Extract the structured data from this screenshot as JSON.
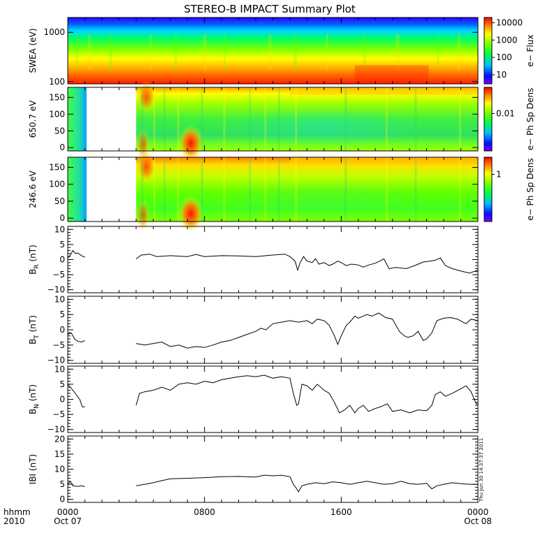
{
  "title": "STEREO-B IMPACT Summary Plot",
  "timestamp": "Thu Jun 30 14:37:37 2011",
  "x_axis": {
    "row1": [
      "hhmm",
      "0000",
      "0800",
      "1600",
      "0000"
    ],
    "row2": [
      "2010",
      "Oct 07",
      "",
      "",
      "Oct 08"
    ],
    "range_hours": [
      0,
      24
    ],
    "tick_hours": [
      0,
      8,
      16,
      24
    ]
  },
  "chart_data": [
    {
      "type": "heatmap",
      "name": "swea",
      "ylabel": "SWEA (eV)",
      "yscale": "log",
      "ylim": [
        90,
        2000
      ],
      "yticks": [
        {
          "v": 100,
          "label": "100"
        },
        {
          "v": 1000,
          "label": "1000"
        }
      ],
      "colorbar": {
        "label": "e− Flux",
        "scale": "log",
        "range": [
          3,
          20000
        ],
        "ticks": [
          {
            "v": 10,
            "label": "10"
          },
          {
            "v": 100,
            "label": "100"
          },
          {
            "v": 1000,
            "label": "1000"
          },
          {
            "v": 10000,
            "label": "10000"
          }
        ]
      },
      "data_gaps_hours": []
    },
    {
      "type": "heatmap",
      "name": "pad650",
      "ylabel": "650.7 eV",
      "ylim": [
        -10,
        180
      ],
      "yticks": [
        {
          "v": 0,
          "label": "0"
        },
        {
          "v": 50,
          "label": "50"
        },
        {
          "v": 100,
          "label": "100"
        },
        {
          "v": 150,
          "label": "150"
        }
      ],
      "colorbar": {
        "label": "e− Ph Sp Dens",
        "scale": "log",
        "range": [
          0.001,
          0.05
        ],
        "ticks": [
          {
            "v": 0.01,
            "label": "0.01"
          }
        ]
      },
      "data_gaps_hours": [
        [
          1.1,
          4.0
        ]
      ]
    },
    {
      "type": "heatmap",
      "name": "pad246",
      "ylabel": "246.6 eV",
      "ylim": [
        -10,
        180
      ],
      "yticks": [
        {
          "v": 0,
          "label": "0"
        },
        {
          "v": 50,
          "label": "50"
        },
        {
          "v": 100,
          "label": "100"
        },
        {
          "v": 150,
          "label": "150"
        }
      ],
      "colorbar": {
        "label": "e− Ph Sp Dens",
        "scale": "log",
        "range": [
          0.05,
          3
        ],
        "ticks": [
          {
            "v": 1,
            "label": "1"
          }
        ]
      },
      "data_gaps_hours": [
        [
          1.1,
          4.0
        ]
      ]
    },
    {
      "type": "line",
      "name": "br",
      "ylabel": "B",
      "ylabel_sub": "R",
      "ylabel_unit": " (nT)",
      "ylim": [
        -11,
        11
      ],
      "yticks": [
        {
          "v": -10,
          "label": "−10"
        },
        {
          "v": -5,
          "label": "−5"
        },
        {
          "v": 0,
          "label": "0"
        },
        {
          "v": 5,
          "label": "5"
        },
        {
          "v": 10,
          "label": "10"
        }
      ],
      "series": [
        [
          [
            0.0,
            0.5
          ],
          [
            0.15,
            1.5
          ],
          [
            0.3,
            3.0
          ],
          [
            0.45,
            2.0
          ],
          [
            0.6,
            2.2
          ],
          [
            0.8,
            1.3
          ],
          [
            1.0,
            0.8
          ]
        ],
        [
          [
            4.0,
            0.2
          ],
          [
            4.3,
            1.5
          ],
          [
            4.8,
            1.8
          ],
          [
            5.2,
            1.0
          ],
          [
            6.0,
            1.3
          ],
          [
            7.0,
            1.0
          ],
          [
            7.5,
            1.7
          ],
          [
            8.0,
            1.0
          ],
          [
            9.0,
            1.3
          ],
          [
            10.0,
            1.2
          ],
          [
            11.0,
            1.0
          ],
          [
            12.0,
            1.5
          ],
          [
            12.7,
            1.8
          ],
          [
            13.0,
            1.0
          ],
          [
            13.3,
            -0.5
          ],
          [
            13.45,
            -3.5
          ],
          [
            13.6,
            -1.0
          ],
          [
            13.8,
            1.0
          ],
          [
            14.0,
            -0.5
          ],
          [
            14.3,
            -1.0
          ],
          [
            14.5,
            0.3
          ],
          [
            14.7,
            -1.5
          ],
          [
            15.0,
            -1.0
          ],
          [
            15.3,
            -2.0
          ],
          [
            15.5,
            -1.5
          ],
          [
            15.8,
            -0.5
          ],
          [
            16.0,
            -1.0
          ],
          [
            16.3,
            -2.0
          ],
          [
            16.6,
            -1.5
          ],
          [
            17.0,
            -1.8
          ],
          [
            17.3,
            -2.5
          ],
          [
            17.6,
            -1.8
          ],
          [
            18.0,
            -1.2
          ],
          [
            18.5,
            0.2
          ],
          [
            18.8,
            -3.0
          ],
          [
            19.2,
            -2.6
          ],
          [
            19.8,
            -3.0
          ],
          [
            20.3,
            -2.0
          ],
          [
            20.8,
            -0.8
          ],
          [
            21.2,
            -0.5
          ],
          [
            21.5,
            -0.2
          ],
          [
            21.8,
            0.5
          ],
          [
            22.1,
            -2.0
          ],
          [
            22.5,
            -3.0
          ],
          [
            23.0,
            -3.8
          ],
          [
            23.5,
            -4.5
          ],
          [
            24.0,
            -3.5
          ]
        ]
      ]
    },
    {
      "type": "line",
      "name": "bt",
      "ylabel": "B",
      "ylabel_sub": "T",
      "ylabel_unit": " (nT)",
      "ylim": [
        -11,
        11
      ],
      "yticks": [
        {
          "v": -10,
          "label": "−10"
        },
        {
          "v": -5,
          "label": "−5"
        },
        {
          "v": 0,
          "label": "0"
        },
        {
          "v": 5,
          "label": "5"
        },
        {
          "v": 10,
          "label": "10"
        }
      ],
      "series": [
        [
          [
            0.0,
            -1.5
          ],
          [
            0.2,
            -1.0
          ],
          [
            0.4,
            -3.0
          ],
          [
            0.6,
            -3.8
          ],
          [
            0.8,
            -4.0
          ],
          [
            1.0,
            -3.5
          ]
        ],
        [
          [
            4.0,
            -4.5
          ],
          [
            4.5,
            -5.0
          ],
          [
            5.0,
            -4.5
          ],
          [
            5.5,
            -4.0
          ],
          [
            6.0,
            -5.5
          ],
          [
            6.5,
            -5.0
          ],
          [
            7.0,
            -6.0
          ],
          [
            7.5,
            -5.5
          ],
          [
            8.0,
            -5.8
          ],
          [
            8.5,
            -5.0
          ],
          [
            9.0,
            -4.0
          ],
          [
            9.5,
            -3.5
          ],
          [
            10.0,
            -2.5
          ],
          [
            10.5,
            -1.5
          ],
          [
            11.0,
            -0.5
          ],
          [
            11.3,
            0.5
          ],
          [
            11.6,
            0.0
          ],
          [
            12.0,
            2.0
          ],
          [
            12.5,
            2.5
          ],
          [
            13.0,
            3.0
          ],
          [
            13.5,
            2.5
          ],
          [
            14.0,
            3.0
          ],
          [
            14.3,
            2.0
          ],
          [
            14.6,
            3.5
          ],
          [
            15.0,
            3.0
          ],
          [
            15.3,
            1.5
          ],
          [
            15.6,
            -2.0
          ],
          [
            15.8,
            -4.8
          ],
          [
            16.0,
            -2.0
          ],
          [
            16.3,
            1.5
          ],
          [
            16.5,
            2.5
          ],
          [
            16.8,
            4.5
          ],
          [
            17.0,
            3.8
          ],
          [
            17.5,
            5.0
          ],
          [
            17.8,
            4.5
          ],
          [
            18.2,
            5.5
          ],
          [
            18.6,
            4.0
          ],
          [
            19.0,
            3.5
          ],
          [
            19.4,
            -0.5
          ],
          [
            19.7,
            -2.0
          ],
          [
            19.9,
            -2.5
          ],
          [
            20.2,
            -2.0
          ],
          [
            20.5,
            -0.5
          ],
          [
            20.8,
            -3.5
          ],
          [
            21.0,
            -3.0
          ],
          [
            21.3,
            -1.0
          ],
          [
            21.6,
            3.0
          ],
          [
            22.0,
            3.8
          ],
          [
            22.4,
            4.0
          ],
          [
            22.8,
            3.5
          ],
          [
            23.3,
            2.0
          ],
          [
            23.6,
            3.5
          ],
          [
            24.0,
            3.0
          ]
        ]
      ]
    },
    {
      "type": "line",
      "name": "bn",
      "ylabel": "B",
      "ylabel_sub": "N",
      "ylabel_unit": " (nT)",
      "ylim": [
        -11,
        11
      ],
      "yticks": [
        {
          "v": -10,
          "label": "−10"
        },
        {
          "v": -5,
          "label": "−5"
        },
        {
          "v": 0,
          "label": "0"
        },
        {
          "v": 5,
          "label": "5"
        },
        {
          "v": 10,
          "label": "10"
        }
      ],
      "series": [
        [
          [
            0.0,
            5.0
          ],
          [
            0.15,
            4.0
          ],
          [
            0.3,
            3.0
          ],
          [
            0.5,
            1.5
          ],
          [
            0.7,
            0.0
          ],
          [
            0.85,
            -2.5
          ],
          [
            1.0,
            -2.5
          ]
        ],
        [
          [
            4.0,
            -2.0
          ],
          [
            4.2,
            2.0
          ],
          [
            4.5,
            2.5
          ],
          [
            5.0,
            3.0
          ],
          [
            5.5,
            4.0
          ],
          [
            6.0,
            3.0
          ],
          [
            6.5,
            5.0
          ],
          [
            7.0,
            5.5
          ],
          [
            7.5,
            5.0
          ],
          [
            8.0,
            6.0
          ],
          [
            8.5,
            5.5
          ],
          [
            9.0,
            6.5
          ],
          [
            9.5,
            7.0
          ],
          [
            10.0,
            7.5
          ],
          [
            10.5,
            7.8
          ],
          [
            11.0,
            7.5
          ],
          [
            11.5,
            8.0
          ],
          [
            12.0,
            7.0
          ],
          [
            12.5,
            7.5
          ],
          [
            13.0,
            7.0
          ],
          [
            13.2,
            2.0
          ],
          [
            13.4,
            -2.0
          ],
          [
            13.5,
            -1.5
          ],
          [
            13.7,
            5.0
          ],
          [
            14.0,
            4.5
          ],
          [
            14.3,
            3.0
          ],
          [
            14.6,
            5.0
          ],
          [
            15.0,
            3.0
          ],
          [
            15.3,
            2.0
          ],
          [
            15.6,
            -1.0
          ],
          [
            15.9,
            -4.5
          ],
          [
            16.2,
            -3.5
          ],
          [
            16.5,
            -2.0
          ],
          [
            16.8,
            -4.5
          ],
          [
            17.0,
            -3.0
          ],
          [
            17.3,
            -2.0
          ],
          [
            17.6,
            -4.0
          ],
          [
            18.0,
            -3.0
          ],
          [
            18.3,
            -2.5
          ],
          [
            18.7,
            -1.5
          ],
          [
            19.0,
            -4.0
          ],
          [
            19.5,
            -3.5
          ],
          [
            20.0,
            -4.5
          ],
          [
            20.5,
            -3.5
          ],
          [
            21.0,
            -3.8
          ],
          [
            21.3,
            -2.0
          ],
          [
            21.5,
            1.5
          ],
          [
            21.8,
            2.5
          ],
          [
            22.1,
            1.0
          ],
          [
            22.5,
            2.0
          ],
          [
            23.0,
            3.5
          ],
          [
            23.3,
            4.5
          ],
          [
            23.6,
            2.5
          ],
          [
            23.9,
            -1.5
          ],
          [
            24.0,
            -1.5
          ]
        ]
      ]
    },
    {
      "type": "line",
      "name": "bmag",
      "ylabel": "IBI (nT)",
      "ylim": [
        -1,
        21
      ],
      "yticks": [
        {
          "v": 0,
          "label": "0"
        },
        {
          "v": 5,
          "label": "5"
        },
        {
          "v": 10,
          "label": "10"
        },
        {
          "v": 15,
          "label": "15"
        },
        {
          "v": 20,
          "label": "20"
        }
      ],
      "series": [
        [
          [
            0.0,
            5.0
          ],
          [
            0.15,
            6.0
          ],
          [
            0.3,
            4.5
          ],
          [
            0.6,
            4.3
          ],
          [
            0.8,
            4.5
          ],
          [
            1.0,
            4.2
          ]
        ],
        [
          [
            4.0,
            4.5
          ],
          [
            4.5,
            5.0
          ],
          [
            5.0,
            5.5
          ],
          [
            5.5,
            6.2
          ],
          [
            6.0,
            6.8
          ],
          [
            7.0,
            7.0
          ],
          [
            8.0,
            7.2
          ],
          [
            9.0,
            7.5
          ],
          [
            10.0,
            7.6
          ],
          [
            11.0,
            7.4
          ],
          [
            11.5,
            8.0
          ],
          [
            12.0,
            7.8
          ],
          [
            12.5,
            8.0
          ],
          [
            13.0,
            7.5
          ],
          [
            13.2,
            5.0
          ],
          [
            13.4,
            3.5
          ],
          [
            13.5,
            2.5
          ],
          [
            13.7,
            4.5
          ],
          [
            14.0,
            5.0
          ],
          [
            14.5,
            5.5
          ],
          [
            15.0,
            5.2
          ],
          [
            15.5,
            5.8
          ],
          [
            16.0,
            5.5
          ],
          [
            16.5,
            5.0
          ],
          [
            17.0,
            5.5
          ],
          [
            17.5,
            6.0
          ],
          [
            18.0,
            5.5
          ],
          [
            18.5,
            5.0
          ],
          [
            19.0,
            5.2
          ],
          [
            19.5,
            6.0
          ],
          [
            20.0,
            5.2
          ],
          [
            20.5,
            5.0
          ],
          [
            21.0,
            5.3
          ],
          [
            21.3,
            3.5
          ],
          [
            21.6,
            4.5
          ],
          [
            22.0,
            5.0
          ],
          [
            22.5,
            5.5
          ],
          [
            23.0,
            5.2
          ],
          [
            23.5,
            5.0
          ],
          [
            24.0,
            5.0
          ]
        ]
      ]
    }
  ]
}
